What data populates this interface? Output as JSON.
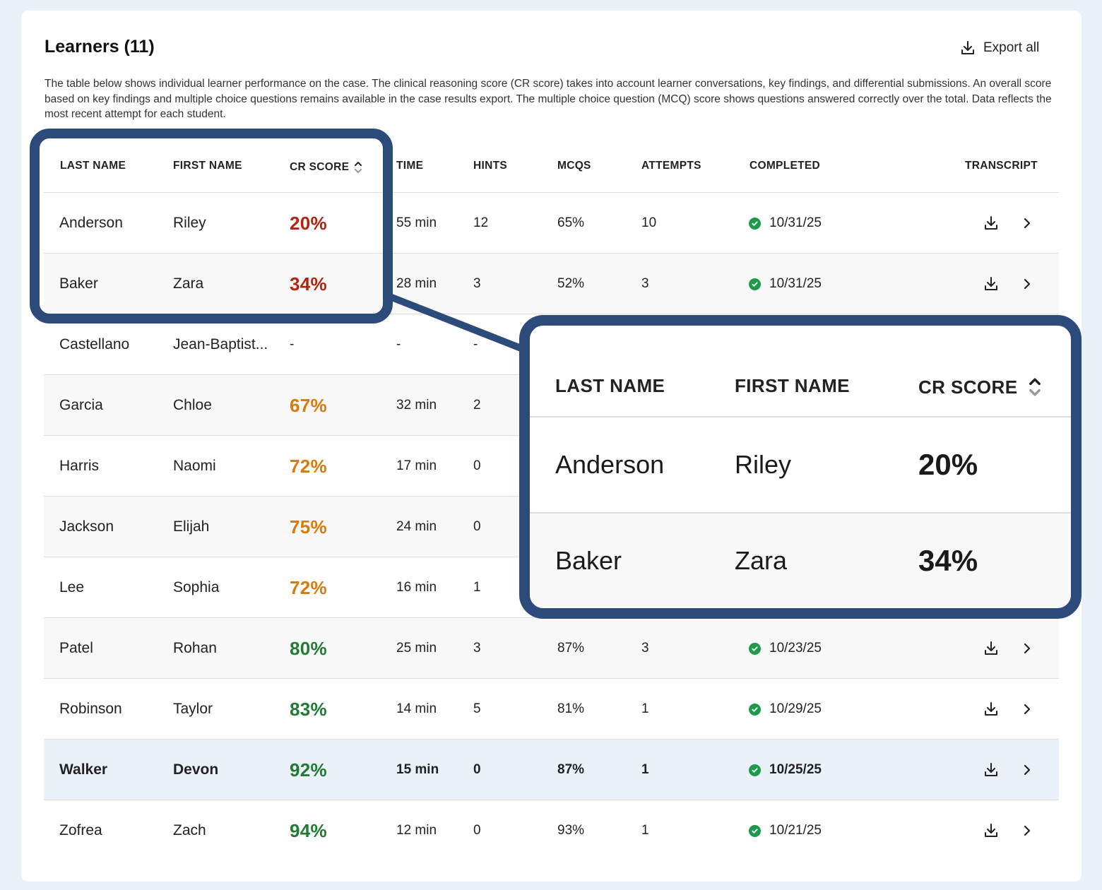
{
  "header": {
    "title": "Learners (11)",
    "export_label": "Export all",
    "description": "The table below shows individual learner performance on the case. The clinical reasoning score (CR score) takes into account learner conversations, key findings, and differential submissions. An overall score based on key findings and multiple choice questions remains available in the case results export. The multiple choice question (MCQ) score shows questions answered correctly over the total. Data reflects the most recent attempt for each student."
  },
  "table": {
    "columns": {
      "last_name": "LAST NAME",
      "first_name": "FIRST NAME",
      "cr_score": "CR SCORE",
      "time": "TIME",
      "hints": "HINTS",
      "mcqs": "MCQS",
      "attempts": "ATTEMPTS",
      "completed": "COMPLETED",
      "transcript": "TRANSCRIPT"
    },
    "rows": [
      {
        "last": "Anderson",
        "first": "Riley",
        "score": "20%",
        "time": "55 min",
        "hints": "12",
        "mcqs": "65%",
        "attempts": "10",
        "completed": "10/31/25"
      },
      {
        "last": "Baker",
        "first": "Zara",
        "score": "34%",
        "time": "28 min",
        "hints": "3",
        "mcqs": "52%",
        "attempts": "3",
        "completed": "10/31/25"
      },
      {
        "last": "Castellano",
        "first": "Jean-Baptist...",
        "score": "-",
        "time": "-",
        "hints": "-",
        "mcqs": "",
        "attempts": "",
        "completed": ""
      },
      {
        "last": "Garcia",
        "first": "Chloe",
        "score": "67%",
        "time": "32 min",
        "hints": "2",
        "mcqs": "",
        "attempts": "",
        "completed": ""
      },
      {
        "last": "Harris",
        "first": "Naomi",
        "score": "72%",
        "time": "17 min",
        "hints": "0",
        "mcqs": "",
        "attempts": "",
        "completed": ""
      },
      {
        "last": "Jackson",
        "first": "Elijah",
        "score": "75%",
        "time": "24 min",
        "hints": "0",
        "mcqs": "",
        "attempts": "",
        "completed": ""
      },
      {
        "last": "Lee",
        "first": "Sophia",
        "score": "72%",
        "time": "16 min",
        "hints": "1",
        "mcqs": "",
        "attempts": "",
        "completed": ""
      },
      {
        "last": "Patel",
        "first": "Rohan",
        "score": "80%",
        "time": "25 min",
        "hints": "3",
        "mcqs": "87%",
        "attempts": "3",
        "completed": "10/23/25"
      },
      {
        "last": "Robinson",
        "first": "Taylor",
        "score": "83%",
        "time": "14 min",
        "hints": "5",
        "mcqs": "81%",
        "attempts": "1",
        "completed": "10/29/25"
      },
      {
        "last": "Walker",
        "first": "Devon",
        "score": "92%",
        "time": "15 min",
        "hints": "0",
        "mcqs": "87%",
        "attempts": "1",
        "completed": "10/25/25"
      },
      {
        "last": "Zofrea",
        "first": "Zach",
        "score": "94%",
        "time": "12 min",
        "hints": "0",
        "mcqs": "93%",
        "attempts": "1",
        "completed": "10/21/25"
      }
    ]
  },
  "icons": {
    "export": "download-icon",
    "sort": "sort-icon",
    "completed": "check-circle-icon",
    "transcript_download": "download-icon",
    "transcript_open": "chevron-right-icon"
  },
  "colors": {
    "score_low": "#b3240f",
    "score_mid": "#d97a0c",
    "score_high": "#227a35",
    "highlight_frame": "#2c4a7a",
    "completed_check": "#1e9a4c",
    "selected_row": "#eaf1f9"
  }
}
